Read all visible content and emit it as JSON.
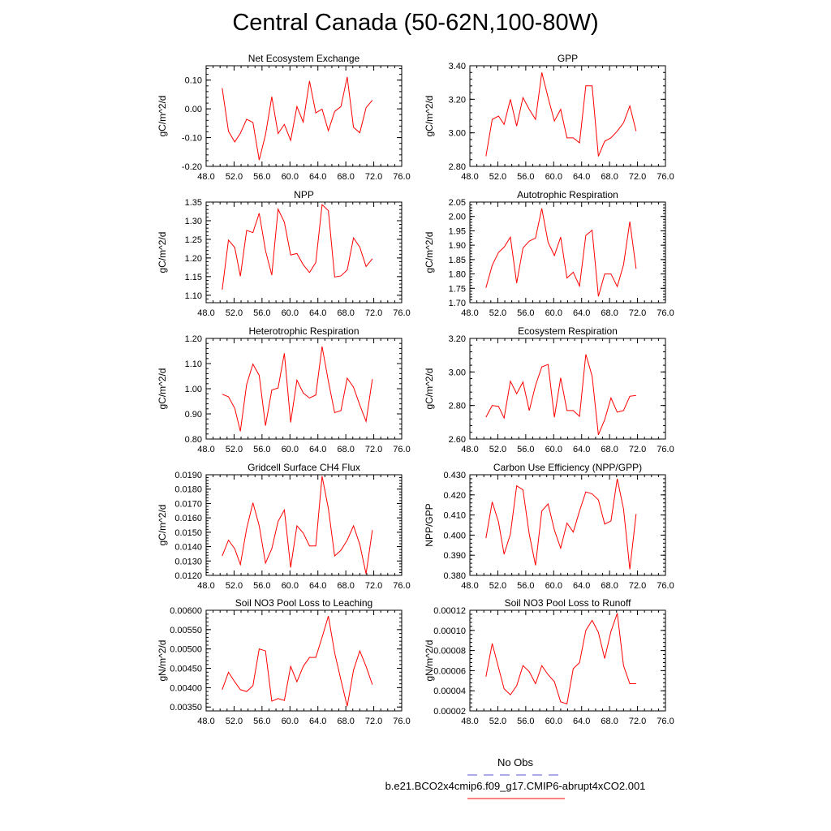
{
  "title": "Central Canada (50-62N,100-80W)",
  "legend": {
    "obs_label": "No Obs",
    "obs_color": "#5a5ad6",
    "case_label": "b.e21.BCO2x4cmip6.f09_g17.CMIP6-abrupt4xCO2.001",
    "case_color": "#ff0000"
  },
  "chart_data": [
    {
      "type": "line",
      "title": "Net Ecosystem Exchange",
      "ylabel": "gC/m^2/d",
      "xlim": [
        48,
        76
      ],
      "ylim": [
        -0.2,
        0.15
      ],
      "xticks": [
        48,
        52,
        56,
        60,
        64,
        68,
        72,
        76
      ],
      "xtick_labels": [
        "48.0",
        "52.0",
        "56.0",
        "60.0",
        "64.0",
        "68.0",
        "72.0",
        "76.0"
      ],
      "yticks": [
        -0.2,
        -0.1,
        0.0,
        0.1
      ],
      "ytick_labels": [
        "-0.20",
        "-0.10",
        "0.00",
        "0.10"
      ],
      "x": [
        50.3,
        51.2,
        52.1,
        52.9,
        53.8,
        54.7,
        55.6,
        56.5,
        57.4,
        58.3,
        59.2,
        60.1,
        61.0,
        61.9,
        62.8,
        63.7,
        64.6,
        65.5,
        66.4,
        67.3,
        68.2,
        69.1,
        70.0,
        70.9,
        71.8,
        72.7,
        73.6
      ],
      "series": [
        {
          "values": [
            0.072,
            -0.078,
            -0.115,
            -0.085,
            -0.036,
            -0.047,
            -0.178,
            -0.09,
            0.042,
            -0.086,
            -0.054,
            -0.11,
            0.008,
            -0.046,
            0.097,
            -0.014,
            -0.001,
            -0.076,
            -0.009,
            0.008,
            0.111,
            -0.064,
            -0.083,
            0.004,
            0.03,
            null,
            null
          ]
        }
      ]
    },
    {
      "type": "line",
      "title": "GPP",
      "ylabel": "gC/m^2/d",
      "xlim": [
        48,
        76
      ],
      "ylim": [
        2.8,
        3.4
      ],
      "xticks": [
        48,
        52,
        56,
        60,
        64,
        68,
        72,
        76
      ],
      "xtick_labels": [
        "48.0",
        "52.0",
        "56.0",
        "60.0",
        "64.0",
        "68.0",
        "72.0",
        "76.0"
      ],
      "yticks": [
        2.8,
        3.0,
        3.2,
        3.4
      ],
      "ytick_labels": [
        "2.80",
        "3.00",
        "3.20",
        "3.40"
      ],
      "x": [
        50.3,
        51.2,
        52.1,
        52.9,
        53.8,
        54.7,
        55.6,
        56.5,
        57.4,
        58.3,
        59.2,
        60.1,
        61.0,
        61.9,
        62.8,
        63.7,
        64.6,
        65.5,
        66.4,
        67.3,
        68.2,
        69.1,
        70.0,
        70.9,
        71.8,
        72.7,
        73.6
      ],
      "series": [
        {
          "values": [
            2.86,
            3.08,
            3.1,
            3.05,
            3.2,
            3.04,
            3.21,
            3.14,
            3.08,
            3.36,
            3.21,
            3.07,
            3.14,
            2.97,
            2.97,
            2.94,
            3.28,
            3.28,
            2.86,
            2.95,
            2.97,
            3.01,
            3.06,
            3.16,
            3.01,
            null,
            null
          ]
        }
      ]
    },
    {
      "type": "line",
      "title": "NPP",
      "ylabel": "gC/m^2/d",
      "xlim": [
        48,
        76
      ],
      "ylim": [
        1.08,
        1.35
      ],
      "xticks": [
        48,
        52,
        56,
        60,
        64,
        68,
        72,
        76
      ],
      "xtick_labels": [
        "48.0",
        "52.0",
        "56.0",
        "60.0",
        "64.0",
        "68.0",
        "72.0",
        "76.0"
      ],
      "yticks": [
        1.1,
        1.15,
        1.2,
        1.25,
        1.3,
        1.35
      ],
      "ytick_labels": [
        "1.10",
        "1.15",
        "1.20",
        "1.25",
        "1.30",
        "1.35"
      ],
      "x": [
        50.3,
        51.2,
        52.1,
        52.9,
        53.8,
        54.7,
        55.6,
        56.5,
        57.4,
        58.3,
        59.2,
        60.1,
        61.0,
        61.9,
        62.8,
        63.7,
        64.6,
        65.5,
        66.4,
        67.3,
        68.2,
        69.1,
        70.0,
        70.9,
        71.8,
        72.7,
        73.6
      ],
      "series": [
        {
          "values": [
            1.115,
            1.248,
            1.228,
            1.151,
            1.274,
            1.268,
            1.32,
            1.22,
            1.154,
            1.331,
            1.296,
            1.208,
            1.212,
            1.182,
            1.161,
            1.188,
            1.343,
            1.327,
            1.149,
            1.152,
            1.168,
            1.254,
            1.229,
            1.177,
            1.198,
            null,
            null
          ]
        }
      ]
    },
    {
      "type": "line",
      "title": "Autotrophic Respiration",
      "ylabel": "gC/m^2/d",
      "xlim": [
        48,
        76
      ],
      "ylim": [
        1.7,
        2.05
      ],
      "xticks": [
        48,
        52,
        56,
        60,
        64,
        68,
        72,
        76
      ],
      "xtick_labels": [
        "48.0",
        "52.0",
        "56.0",
        "60.0",
        "64.0",
        "68.0",
        "72.0",
        "76.0"
      ],
      "yticks": [
        1.7,
        1.75,
        1.8,
        1.85,
        1.9,
        1.95,
        2.0,
        2.05
      ],
      "ytick_labels": [
        "1.70",
        "1.75",
        "1.80",
        "1.85",
        "1.90",
        "1.95",
        "2.00",
        "2.05"
      ],
      "x": [
        50.3,
        51.2,
        52.1,
        52.9,
        53.8,
        54.7,
        55.6,
        56.5,
        57.4,
        58.3,
        59.2,
        60.1,
        61.0,
        61.9,
        62.8,
        63.7,
        64.6,
        65.5,
        66.4,
        67.3,
        68.2,
        69.1,
        70.0,
        70.9,
        71.8,
        72.7,
        73.6
      ],
      "series": [
        {
          "values": [
            1.752,
            1.83,
            1.875,
            1.893,
            1.928,
            1.768,
            1.89,
            1.914,
            1.925,
            2.028,
            1.91,
            1.864,
            1.928,
            1.786,
            1.806,
            1.758,
            1.934,
            1.952,
            1.722,
            1.8,
            1.8,
            1.756,
            1.832,
            1.982,
            1.818,
            null,
            null
          ]
        }
      ]
    },
    {
      "type": "line",
      "title": "Heterotrophic Respiration",
      "ylabel": "gC/m^2/d",
      "xlim": [
        48,
        76
      ],
      "ylim": [
        0.8,
        1.2
      ],
      "xticks": [
        48,
        52,
        56,
        60,
        64,
        68,
        72,
        76
      ],
      "xtick_labels": [
        "48.0",
        "52.0",
        "56.0",
        "60.0",
        "64.0",
        "68.0",
        "72.0",
        "76.0"
      ],
      "yticks": [
        0.8,
        0.9,
        1.0,
        1.1,
        1.2
      ],
      "ytick_labels": [
        "0.80",
        "0.90",
        "1.00",
        "1.10",
        "1.20"
      ],
      "x": [
        50.3,
        51.2,
        52.1,
        52.9,
        53.8,
        54.7,
        55.6,
        56.5,
        57.4,
        58.3,
        59.2,
        60.1,
        61.0,
        61.9,
        62.8,
        63.7,
        64.6,
        65.5,
        66.4,
        67.3,
        68.2,
        69.1,
        70.0,
        70.9,
        71.8,
        72.7,
        73.6
      ],
      "series": [
        {
          "values": [
            0.978,
            0.968,
            0.922,
            0.831,
            1.017,
            1.098,
            1.053,
            0.853,
            0.995,
            1.003,
            1.141,
            0.866,
            1.034,
            0.983,
            0.963,
            0.975,
            1.168,
            1.03,
            0.905,
            0.913,
            1.042,
            1.006,
            0.935,
            0.87,
            1.038,
            null,
            null
          ]
        }
      ]
    },
    {
      "type": "line",
      "title": "Ecosystem Respiration",
      "ylabel": "gC/m^2/d",
      "xlim": [
        48,
        76
      ],
      "ylim": [
        2.6,
        3.2
      ],
      "xticks": [
        48,
        52,
        56,
        60,
        64,
        68,
        72,
        76
      ],
      "xtick_labels": [
        "48.0",
        "52.0",
        "56.0",
        "60.0",
        "64.0",
        "68.0",
        "72.0",
        "76.0"
      ],
      "yticks": [
        2.6,
        2.8,
        3.0,
        3.2
      ],
      "ytick_labels": [
        "2.60",
        "2.80",
        "3.00",
        "3.20"
      ],
      "x": [
        50.3,
        51.2,
        52.1,
        52.9,
        53.8,
        54.7,
        55.6,
        56.5,
        57.4,
        58.3,
        59.2,
        60.1,
        61.0,
        61.9,
        62.8,
        63.7,
        64.6,
        65.5,
        66.4,
        67.3,
        68.2,
        69.1,
        70.0,
        70.9,
        71.8,
        72.7,
        73.6
      ],
      "series": [
        {
          "values": [
            2.73,
            2.8,
            2.795,
            2.725,
            2.945,
            2.87,
            2.94,
            2.77,
            2.92,
            3.03,
            3.045,
            2.73,
            2.965,
            2.77,
            2.77,
            2.735,
            3.105,
            2.975,
            2.625,
            2.715,
            2.845,
            2.76,
            2.77,
            2.855,
            2.86,
            null,
            null
          ]
        }
      ]
    },
    {
      "type": "line",
      "title": "Gridcell Surface CH4 Flux",
      "ylabel": "gC/m^2/d",
      "xlim": [
        48,
        76
      ],
      "ylim": [
        0.012,
        0.019
      ],
      "xticks": [
        48,
        52,
        56,
        60,
        64,
        68,
        72,
        76
      ],
      "xtick_labels": [
        "48.0",
        "52.0",
        "56.0",
        "60.0",
        "64.0",
        "68.0",
        "72.0",
        "76.0"
      ],
      "yticks": [
        0.012,
        0.013,
        0.014,
        0.015,
        0.016,
        0.017,
        0.018,
        0.019
      ],
      "ytick_labels": [
        "0.0120",
        "0.0130",
        "0.0140",
        "0.0150",
        "0.0160",
        "0.0170",
        "0.0180",
        "0.0190"
      ],
      "x": [
        50.3,
        51.2,
        52.1,
        52.9,
        53.8,
        54.7,
        55.6,
        56.5,
        57.4,
        58.3,
        59.2,
        60.1,
        61.0,
        61.9,
        62.8,
        63.7,
        64.6,
        65.5,
        66.4,
        67.3,
        68.2,
        69.1,
        70.0,
        70.9,
        71.8,
        72.7,
        73.6
      ],
      "series": [
        {
          "values": [
            0.01335,
            0.01445,
            0.01385,
            0.01275,
            0.01525,
            0.01705,
            0.01545,
            0.01285,
            0.01385,
            0.01575,
            0.01655,
            0.01255,
            0.01545,
            0.01495,
            0.01405,
            0.01405,
            0.0189,
            0.01665,
            0.01335,
            0.01375,
            0.01445,
            0.01545,
            0.01415,
            0.0121,
            0.01515,
            null,
            null
          ]
        }
      ]
    },
    {
      "type": "line",
      "title": "Carbon Use Efficiency (NPP/GPP)",
      "ylabel": "NPP/GPP",
      "xlim": [
        48,
        76
      ],
      "ylim": [
        0.38,
        0.43
      ],
      "xticks": [
        48,
        52,
        56,
        60,
        64,
        68,
        72,
        76
      ],
      "xtick_labels": [
        "48.0",
        "52.0",
        "56.0",
        "60.0",
        "64.0",
        "68.0",
        "72.0",
        "76.0"
      ],
      "yticks": [
        0.38,
        0.39,
        0.4,
        0.41,
        0.42,
        0.43
      ],
      "ytick_labels": [
        "0.380",
        "0.390",
        "0.400",
        "0.410",
        "0.420",
        "0.430"
      ],
      "x": [
        50.3,
        51.2,
        52.1,
        52.9,
        53.8,
        54.7,
        55.6,
        56.5,
        57.4,
        58.3,
        59.2,
        60.1,
        61.0,
        61.9,
        62.8,
        63.7,
        64.6,
        65.5,
        66.4,
        67.3,
        68.2,
        69.1,
        70.0,
        70.9,
        71.8,
        72.7,
        73.6
      ],
      "series": [
        {
          "values": [
            0.3985,
            0.4165,
            0.4065,
            0.3905,
            0.4005,
            0.4245,
            0.4225,
            0.4005,
            0.385,
            0.412,
            0.4155,
            0.4025,
            0.3935,
            0.406,
            0.4015,
            0.412,
            0.4215,
            0.4205,
            0.4175,
            0.4055,
            0.407,
            0.428,
            0.413,
            0.383,
            0.4105,
            null,
            null
          ]
        }
      ]
    },
    {
      "type": "line",
      "title": "Soil NO3 Pool Loss to Leaching",
      "ylabel": "gN/m^2/d",
      "xlim": [
        48,
        76
      ],
      "ylim": [
        0.0034,
        0.006
      ],
      "xticks": [
        48,
        52,
        56,
        60,
        64,
        68,
        72,
        76
      ],
      "xtick_labels": [
        "48.0",
        "52.0",
        "56.0",
        "60.0",
        "64.0",
        "68.0",
        "72.0",
        "76.0"
      ],
      "yticks": [
        0.0035,
        0.004,
        0.0045,
        0.005,
        0.0055,
        0.006
      ],
      "ytick_labels": [
        "0.00350",
        "0.00400",
        "0.00450",
        "0.00500",
        "0.00550",
        "0.00600"
      ],
      "x": [
        50.3,
        51.2,
        52.1,
        52.9,
        53.8,
        54.7,
        55.6,
        56.5,
        57.4,
        58.3,
        59.2,
        60.1,
        61.0,
        61.9,
        62.8,
        63.7,
        64.6,
        65.5,
        66.4,
        67.3,
        68.2,
        69.1,
        70.0,
        70.9,
        71.8,
        72.7,
        73.6
      ],
      "series": [
        {
          "values": [
            0.00395,
            0.0044,
            0.00415,
            0.00395,
            0.0039,
            0.00405,
            0.005,
            0.00495,
            0.00365,
            0.00372,
            0.00367,
            0.00455,
            0.00415,
            0.00455,
            0.00478,
            0.00478,
            0.0053,
            0.00585,
            0.0049,
            0.0042,
            0.00352,
            0.00445,
            0.00495,
            0.00455,
            0.00408,
            null,
            null
          ]
        }
      ]
    },
    {
      "type": "line",
      "title": "Soil NO3 Pool Loss to Runoff",
      "ylabel": "gN/m^2/d",
      "xlim": [
        48,
        76
      ],
      "ylim": [
        2e-05,
        0.00012
      ],
      "xticks": [
        48,
        52,
        56,
        60,
        64,
        68,
        72,
        76
      ],
      "xtick_labels": [
        "48.0",
        "52.0",
        "56.0",
        "60.0",
        "64.0",
        "68.0",
        "72.0",
        "76.0"
      ],
      "yticks": [
        2e-05,
        4e-05,
        6e-05,
        8e-05,
        0.0001,
        0.00012
      ],
      "ytick_labels": [
        "0.00002",
        "0.00004",
        "0.00006",
        "0.00008",
        "0.00010",
        "0.00012"
      ],
      "x": [
        50.3,
        51.2,
        52.1,
        52.9,
        53.8,
        54.7,
        55.6,
        56.5,
        57.4,
        58.3,
        59.2,
        60.1,
        61.0,
        61.9,
        62.8,
        63.7,
        64.6,
        65.5,
        66.4,
        67.3,
        68.2,
        69.1,
        70.0,
        70.9,
        71.8,
        72.7,
        73.6
      ],
      "series": [
        {
          "values": [
            5.4e-05,
            8.7e-05,
            6.3e-05,
            4.2e-05,
            3.6e-05,
            4.5e-05,
            6.5e-05,
            5.9e-05,
            4.7e-05,
            6.5e-05,
            5.6e-05,
            4.9e-05,
            2.9e-05,
            2.7e-05,
            6.2e-05,
            6.8e-05,
            0.0001,
            0.00011,
            9.8e-05,
            7.2e-05,
            9.9e-05,
            0.000117,
            6.5e-05,
            4.7e-05,
            4.7e-05,
            null,
            null
          ]
        }
      ]
    }
  ]
}
